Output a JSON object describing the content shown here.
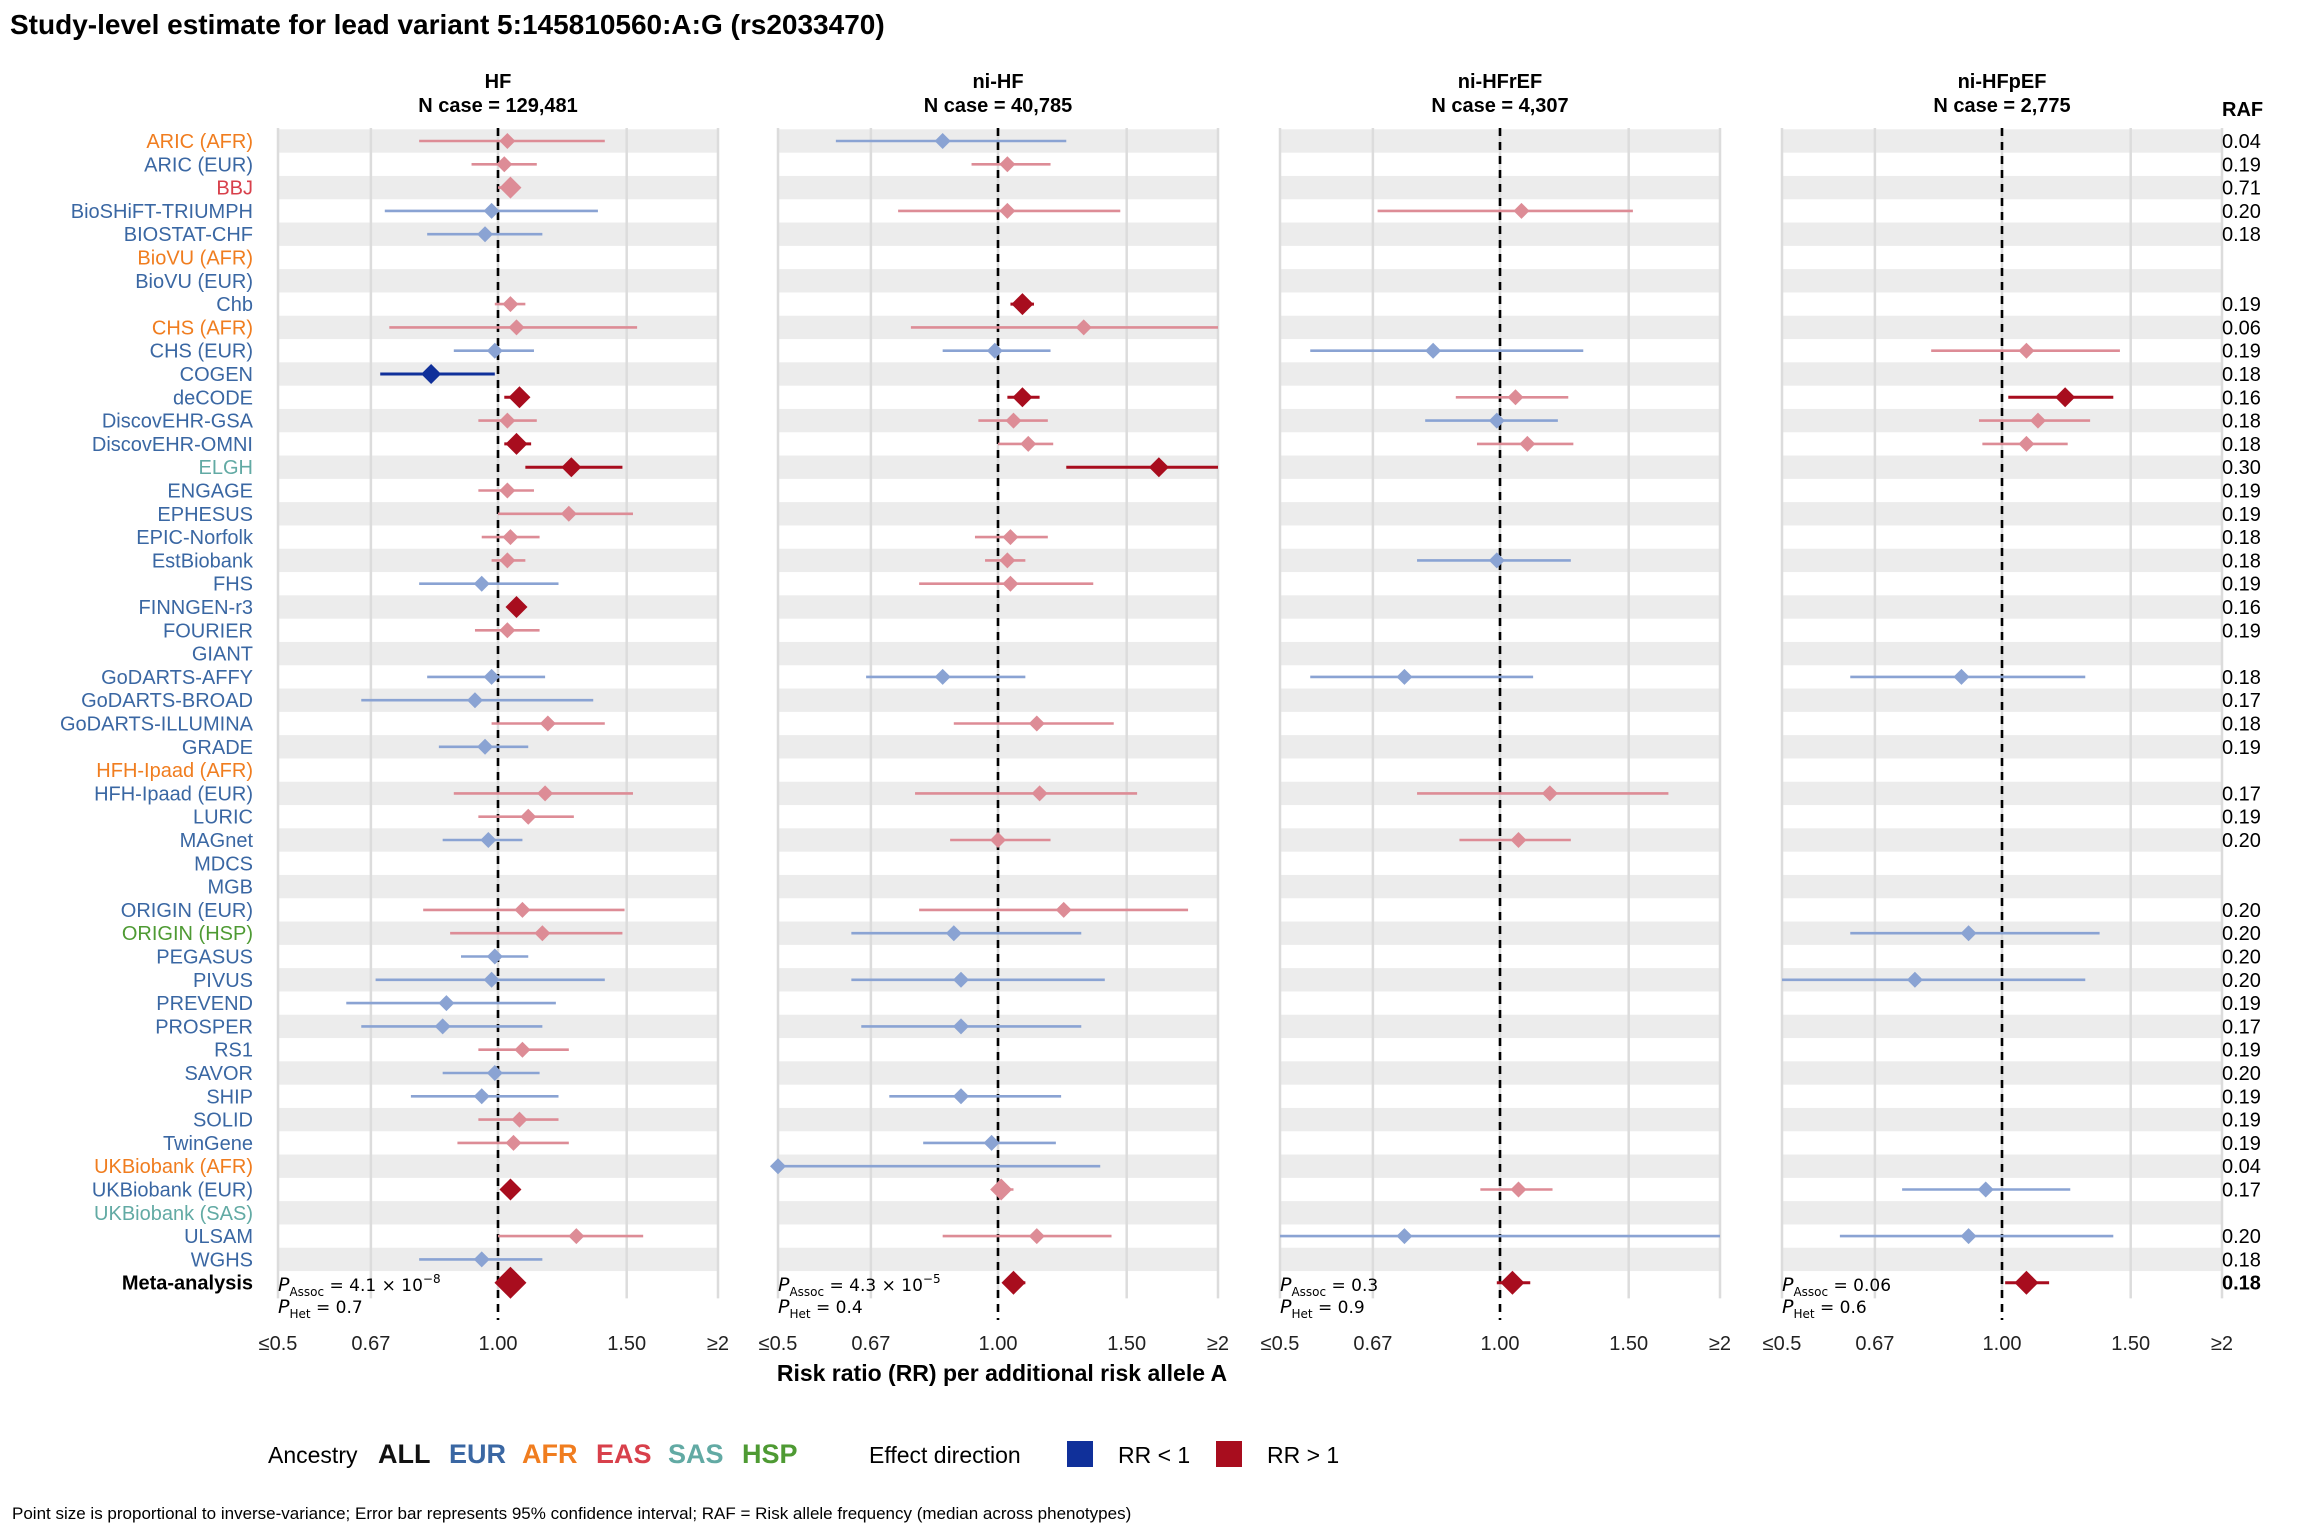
{
  "title": "Study-level estimate for lead variant 5:145810560:A:G (rs2033470)",
  "xlabel": "Risk ratio (RR) per additional risk allele A",
  "raf_header": "RAF",
  "footnote": "Point size is proportional to inverse-variance; Error bar represents 95% confidence interval; RAF = Risk allele frequency (median across phenotypes)",
  "legend": {
    "ancestry_label": "Ancestry",
    "ancestries": [
      {
        "label": "ALL",
        "color": "#111111"
      },
      {
        "label": "EUR",
        "color": "#3a67a3"
      },
      {
        "label": "AFR",
        "color": "#f07d1f"
      },
      {
        "label": "EAS",
        "color": "#d8404b"
      },
      {
        "label": "SAS",
        "color": "#62aaa4"
      },
      {
        "label": "HSP",
        "color": "#4e9a33"
      }
    ],
    "effect_label": "Effect direction",
    "effects": [
      {
        "label": "RR < 1",
        "color": "#10309a"
      },
      {
        "label": "RR > 1",
        "color": "#a80d1e"
      }
    ]
  },
  "chart_data": {
    "type": "forest",
    "x_scale": "log",
    "xlim": [
      0.5,
      2
    ],
    "x_ticks": [
      {
        "value": 0.5,
        "label": "≤0.5"
      },
      {
        "value": 0.67,
        "label": "0.67"
      },
      {
        "value": 1.0,
        "label": "1.00"
      },
      {
        "value": 1.5,
        "label": "1.50"
      },
      {
        "value": 2.0,
        "label": "≥2"
      }
    ],
    "reference_line": 1.0,
    "ancestry_colors": {
      "EUR": "#3a67a3",
      "AFR": "#f07d1f",
      "EAS": "#d8404b",
      "SAS": "#62aaa4",
      "HSP": "#4e9a33",
      "ALL": "#000000"
    },
    "studies": [
      {
        "name": "ARIC (AFR)",
        "ancestry": "AFR",
        "raf": "0.04"
      },
      {
        "name": "ARIC (EUR)",
        "ancestry": "EUR",
        "raf": "0.19"
      },
      {
        "name": "BBJ",
        "ancestry": "EAS",
        "raf": "0.71"
      },
      {
        "name": "BioSHiFT-TRIUMPH",
        "ancestry": "EUR",
        "raf": "0.20"
      },
      {
        "name": "BIOSTAT-CHF",
        "ancestry": "EUR",
        "raf": "0.18"
      },
      {
        "name": "BioVU (AFR)",
        "ancestry": "AFR",
        "raf": ""
      },
      {
        "name": "BioVU (EUR)",
        "ancestry": "EUR",
        "raf": ""
      },
      {
        "name": "Chb",
        "ancestry": "EUR",
        "raf": "0.19"
      },
      {
        "name": "CHS (AFR)",
        "ancestry": "AFR",
        "raf": "0.06"
      },
      {
        "name": "CHS (EUR)",
        "ancestry": "EUR",
        "raf": "0.19"
      },
      {
        "name": "COGEN",
        "ancestry": "EUR",
        "raf": "0.18"
      },
      {
        "name": "deCODE",
        "ancestry": "EUR",
        "raf": "0.16"
      },
      {
        "name": "DiscovEHR-GSA",
        "ancestry": "EUR",
        "raf": "0.18"
      },
      {
        "name": "DiscovEHR-OMNI",
        "ancestry": "EUR",
        "raf": "0.18"
      },
      {
        "name": "ELGH",
        "ancestry": "SAS",
        "raf": "0.30"
      },
      {
        "name": "ENGAGE",
        "ancestry": "EUR",
        "raf": "0.19"
      },
      {
        "name": "EPHESUS",
        "ancestry": "EUR",
        "raf": "0.19"
      },
      {
        "name": "EPIC-Norfolk",
        "ancestry": "EUR",
        "raf": "0.18"
      },
      {
        "name": "EstBiobank",
        "ancestry": "EUR",
        "raf": "0.18"
      },
      {
        "name": "FHS",
        "ancestry": "EUR",
        "raf": "0.19"
      },
      {
        "name": "FINNGEN-r3",
        "ancestry": "EUR",
        "raf": "0.16"
      },
      {
        "name": "FOURIER",
        "ancestry": "EUR",
        "raf": "0.19"
      },
      {
        "name": "GIANT",
        "ancestry": "EUR",
        "raf": ""
      },
      {
        "name": "GoDARTS-AFFY",
        "ancestry": "EUR",
        "raf": "0.18"
      },
      {
        "name": "GoDARTS-BROAD",
        "ancestry": "EUR",
        "raf": "0.17"
      },
      {
        "name": "GoDARTS-ILLUMINA",
        "ancestry": "EUR",
        "raf": "0.18"
      },
      {
        "name": "GRADE",
        "ancestry": "EUR",
        "raf": "0.19"
      },
      {
        "name": "HFH-Ipaad (AFR)",
        "ancestry": "AFR",
        "raf": ""
      },
      {
        "name": "HFH-Ipaad (EUR)",
        "ancestry": "EUR",
        "raf": "0.17"
      },
      {
        "name": "LURIC",
        "ancestry": "EUR",
        "raf": "0.19"
      },
      {
        "name": "MAGnet",
        "ancestry": "EUR",
        "raf": "0.20"
      },
      {
        "name": "MDCS",
        "ancestry": "EUR",
        "raf": ""
      },
      {
        "name": "MGB",
        "ancestry": "EUR",
        "raf": ""
      },
      {
        "name": "ORIGIN (EUR)",
        "ancestry": "EUR",
        "raf": "0.20"
      },
      {
        "name": "ORIGIN (HSP)",
        "ancestry": "HSP",
        "raf": "0.20"
      },
      {
        "name": "PEGASUS",
        "ancestry": "EUR",
        "raf": "0.20"
      },
      {
        "name": "PIVUS",
        "ancestry": "EUR",
        "raf": "0.20"
      },
      {
        "name": "PREVEND",
        "ancestry": "EUR",
        "raf": "0.19"
      },
      {
        "name": "PROSPER",
        "ancestry": "EUR",
        "raf": "0.17"
      },
      {
        "name": "RS1",
        "ancestry": "EUR",
        "raf": "0.19"
      },
      {
        "name": "SAVOR",
        "ancestry": "EUR",
        "raf": "0.20"
      },
      {
        "name": "SHIP",
        "ancestry": "EUR",
        "raf": "0.19"
      },
      {
        "name": "SOLID",
        "ancestry": "EUR",
        "raf": "0.19"
      },
      {
        "name": "TwinGene",
        "ancestry": "EUR",
        "raf": "0.19"
      },
      {
        "name": "UKBiobank (AFR)",
        "ancestry": "AFR",
        "raf": "0.04"
      },
      {
        "name": "UKBiobank (EUR)",
        "ancestry": "EUR",
        "raf": "0.17"
      },
      {
        "name": "UKBiobank (SAS)",
        "ancestry": "SAS",
        "raf": ""
      },
      {
        "name": "ULSAM",
        "ancestry": "EUR",
        "raf": "0.20"
      },
      {
        "name": "WGHS",
        "ancestry": "EUR",
        "raf": "0.18"
      },
      {
        "name": "Meta-analysis",
        "ancestry": "ALL",
        "raf": "0.18"
      }
    ],
    "panels": [
      {
        "name": "HF",
        "n_case": "N case = 129,481",
        "p_assoc": "4.1 × 10",
        "p_assoc_exp": "−8",
        "p_het": "0.7",
        "estimates": [
          {
            "study": "ARIC (AFR)",
            "rr": 1.03,
            "lo": 0.78,
            "hi": 1.4
          },
          {
            "study": "ARIC (EUR)",
            "rr": 1.02,
            "lo": 0.92,
            "hi": 1.13
          },
          {
            "study": "BBJ",
            "rr": 1.04,
            "lo": 1.0,
            "hi": 1.07
          },
          {
            "study": "BioSHiFT-TRIUMPH",
            "rr": 0.98,
            "lo": 0.7,
            "hi": 1.37
          },
          {
            "study": "BIOSTAT-CHF",
            "rr": 0.96,
            "lo": 0.8,
            "hi": 1.15
          },
          {
            "study": "Chb",
            "rr": 1.04,
            "lo": 0.99,
            "hi": 1.09
          },
          {
            "study": "CHS (AFR)",
            "rr": 1.06,
            "lo": 0.71,
            "hi": 1.55
          },
          {
            "study": "CHS (EUR)",
            "rr": 0.99,
            "lo": 0.87,
            "hi": 1.12
          },
          {
            "study": "COGEN",
            "rr": 0.81,
            "lo": 0.69,
            "hi": 0.99
          },
          {
            "study": "deCODE",
            "rr": 1.07,
            "lo": 1.02,
            "hi": 1.1
          },
          {
            "study": "DiscovEHR-GSA",
            "rr": 1.03,
            "lo": 0.94,
            "hi": 1.13
          },
          {
            "study": "DiscovEHR-OMNI",
            "rr": 1.06,
            "lo": 1.02,
            "hi": 1.11
          },
          {
            "study": "ELGH",
            "rr": 1.26,
            "lo": 1.09,
            "hi": 1.48
          },
          {
            "study": "ENGAGE",
            "rr": 1.03,
            "lo": 0.94,
            "hi": 1.12
          },
          {
            "study": "EPHESUS",
            "rr": 1.25,
            "lo": 1.0,
            "hi": 1.53
          },
          {
            "study": "EPIC-Norfolk",
            "rr": 1.04,
            "lo": 0.95,
            "hi": 1.14
          },
          {
            "study": "EstBiobank",
            "rr": 1.03,
            "lo": 0.98,
            "hi": 1.09
          },
          {
            "study": "FHS",
            "rr": 0.95,
            "lo": 0.78,
            "hi": 1.21
          },
          {
            "study": "FINNGEN-r3",
            "rr": 1.06,
            "lo": 1.03,
            "hi": 1.09
          },
          {
            "study": "FOURIER",
            "rr": 1.03,
            "lo": 0.93,
            "hi": 1.14
          },
          {
            "study": "GoDARTS-AFFY",
            "rr": 0.98,
            "lo": 0.8,
            "hi": 1.16
          },
          {
            "study": "GoDARTS-BROAD",
            "rr": 0.93,
            "lo": 0.65,
            "hi": 1.35
          },
          {
            "study": "GoDARTS-ILLUMINA",
            "rr": 1.17,
            "lo": 0.98,
            "hi": 1.4
          },
          {
            "study": "GRADE",
            "rr": 0.96,
            "lo": 0.83,
            "hi": 1.1
          },
          {
            "study": "HFH-Ipaad (EUR)",
            "rr": 1.16,
            "lo": 0.87,
            "hi": 1.53
          },
          {
            "study": "LURIC",
            "rr": 1.1,
            "lo": 0.94,
            "hi": 1.27
          },
          {
            "study": "MAGnet",
            "rr": 0.97,
            "lo": 0.84,
            "hi": 1.08
          },
          {
            "study": "ORIGIN (EUR)",
            "rr": 1.08,
            "lo": 0.79,
            "hi": 1.49
          },
          {
            "study": "ORIGIN (HSP)",
            "rr": 1.15,
            "lo": 0.86,
            "hi": 1.48
          },
          {
            "study": "PEGASUS",
            "rr": 0.99,
            "lo": 0.89,
            "hi": 1.1
          },
          {
            "study": "PIVUS",
            "rr": 0.98,
            "lo": 0.68,
            "hi": 1.4
          },
          {
            "study": "PREVEND",
            "rr": 0.85,
            "lo": 0.62,
            "hi": 1.2
          },
          {
            "study": "PROSPER",
            "rr": 0.84,
            "lo": 0.65,
            "hi": 1.15
          },
          {
            "study": "RS1",
            "rr": 1.08,
            "lo": 0.94,
            "hi": 1.25
          },
          {
            "study": "SAVOR",
            "rr": 0.99,
            "lo": 0.84,
            "hi": 1.14
          },
          {
            "study": "SHIP",
            "rr": 0.95,
            "lo": 0.76,
            "hi": 1.21
          },
          {
            "study": "SOLID",
            "rr": 1.07,
            "lo": 0.94,
            "hi": 1.21
          },
          {
            "study": "TwinGene",
            "rr": 1.05,
            "lo": 0.88,
            "hi": 1.25
          },
          {
            "study": "UKBiobank (EUR)",
            "rr": 1.04,
            "lo": 1.01,
            "hi": 1.07
          },
          {
            "study": "ULSAM",
            "rr": 1.28,
            "lo": 1.0,
            "hi": 1.58
          },
          {
            "study": "WGHS",
            "rr": 0.95,
            "lo": 0.78,
            "hi": 1.15
          },
          {
            "study": "Meta-analysis",
            "rr": 1.04,
            "lo": 1.02,
            "hi": 1.06
          }
        ]
      },
      {
        "name": "ni-HF",
        "n_case": "N case = 40,785",
        "p_assoc": "4.3 × 10",
        "p_assoc_exp": "−5",
        "p_het": "0.4",
        "estimates": [
          {
            "study": "ARIC (AFR)",
            "rr": 0.84,
            "lo": 0.6,
            "hi": 1.24
          },
          {
            "study": "ARIC (EUR)",
            "rr": 1.03,
            "lo": 0.92,
            "hi": 1.18
          },
          {
            "study": "BioSHiFT-TRIUMPH",
            "rr": 1.03,
            "lo": 0.73,
            "hi": 1.47
          },
          {
            "study": "Chb",
            "rr": 1.08,
            "lo": 1.04,
            "hi": 1.12
          },
          {
            "study": "CHS (AFR)",
            "rr": 1.31,
            "lo": 0.76,
            "hi": 2.0
          },
          {
            "study": "CHS (EUR)",
            "rr": 0.99,
            "lo": 0.84,
            "hi": 1.18
          },
          {
            "study": "deCODE",
            "rr": 1.08,
            "lo": 1.03,
            "hi": 1.14
          },
          {
            "study": "DiscovEHR-GSA",
            "rr": 1.05,
            "lo": 0.94,
            "hi": 1.17
          },
          {
            "study": "DiscovEHR-OMNI",
            "rr": 1.1,
            "lo": 1.0,
            "hi": 1.19
          },
          {
            "study": "ELGH",
            "rr": 1.66,
            "lo": 1.24,
            "hi": 2.0
          },
          {
            "study": "EPIC-Norfolk",
            "rr": 1.04,
            "lo": 0.93,
            "hi": 1.17
          },
          {
            "study": "EstBiobank",
            "rr": 1.03,
            "lo": 0.96,
            "hi": 1.09
          },
          {
            "study": "FHS",
            "rr": 1.04,
            "lo": 0.78,
            "hi": 1.35
          },
          {
            "study": "GoDARTS-AFFY",
            "rr": 0.84,
            "lo": 0.66,
            "hi": 1.09
          },
          {
            "study": "GoDARTS-ILLUMINA",
            "rr": 1.13,
            "lo": 0.87,
            "hi": 1.44
          },
          {
            "study": "HFH-Ipaad (EUR)",
            "rr": 1.14,
            "lo": 0.77,
            "hi": 1.55
          },
          {
            "study": "MAGnet",
            "rr": 1.0,
            "lo": 0.86,
            "hi": 1.18
          },
          {
            "study": "ORIGIN (EUR)",
            "rr": 1.23,
            "lo": 0.78,
            "hi": 1.82
          },
          {
            "study": "ORIGIN (HSP)",
            "rr": 0.87,
            "lo": 0.63,
            "hi": 1.3
          },
          {
            "study": "PIVUS",
            "rr": 0.89,
            "lo": 0.63,
            "hi": 1.4
          },
          {
            "study": "PROSPER",
            "rr": 0.89,
            "lo": 0.65,
            "hi": 1.3
          },
          {
            "study": "SHIP",
            "rr": 0.89,
            "lo": 0.71,
            "hi": 1.22
          },
          {
            "study": "TwinGene",
            "rr": 0.98,
            "lo": 0.79,
            "hi": 1.2
          },
          {
            "study": "UKBiobank (AFR)",
            "rr": 0.5,
            "lo": 0.5,
            "hi": 1.38
          },
          {
            "study": "UKBiobank (EUR)",
            "rr": 1.01,
            "lo": 0.98,
            "hi": 1.05
          },
          {
            "study": "ULSAM",
            "rr": 1.13,
            "lo": 0.84,
            "hi": 1.43
          },
          {
            "study": "Meta-analysis",
            "rr": 1.05,
            "lo": 1.02,
            "hi": 1.09
          }
        ]
      },
      {
        "name": "ni-HFrEF",
        "n_case": "N case = 4,307",
        "p_assoc": "0.3",
        "p_assoc_exp": "",
        "p_het": "0.9",
        "estimates": [
          {
            "study": "BioSHiFT-TRIUMPH",
            "rr": 1.07,
            "lo": 0.68,
            "hi": 1.52
          },
          {
            "study": "CHS (EUR)",
            "rr": 0.81,
            "lo": 0.55,
            "hi": 1.3
          },
          {
            "study": "deCODE",
            "rr": 1.05,
            "lo": 0.87,
            "hi": 1.24
          },
          {
            "study": "DiscovEHR-GSA",
            "rr": 0.99,
            "lo": 0.79,
            "hi": 1.2
          },
          {
            "study": "DiscovEHR-OMNI",
            "rr": 1.09,
            "lo": 0.93,
            "hi": 1.26
          },
          {
            "study": "EstBiobank",
            "rr": 0.99,
            "lo": 0.77,
            "hi": 1.25
          },
          {
            "study": "GoDARTS-AFFY",
            "rr": 0.74,
            "lo": 0.55,
            "hi": 1.11
          },
          {
            "study": "HFH-Ipaad (EUR)",
            "rr": 1.17,
            "lo": 0.77,
            "hi": 1.7
          },
          {
            "study": "MAGnet",
            "rr": 1.06,
            "lo": 0.88,
            "hi": 1.25
          },
          {
            "study": "UKBiobank (EUR)",
            "rr": 1.06,
            "lo": 0.94,
            "hi": 1.18
          },
          {
            "study": "ULSAM",
            "rr": 0.74,
            "lo": 0.5,
            "hi": 2.0
          },
          {
            "study": "Meta-analysis",
            "rr": 1.04,
            "lo": 0.99,
            "hi": 1.1
          }
        ]
      },
      {
        "name": "ni-HFpEF",
        "n_case": "N case = 2,775",
        "p_assoc": "0.06",
        "p_assoc_exp": "",
        "p_het": "0.6",
        "estimates": [
          {
            "study": "CHS (EUR)",
            "rr": 1.08,
            "lo": 0.8,
            "hi": 1.45
          },
          {
            "study": "deCODE",
            "rr": 1.22,
            "lo": 1.02,
            "hi": 1.42
          },
          {
            "study": "DiscovEHR-GSA",
            "rr": 1.12,
            "lo": 0.93,
            "hi": 1.32
          },
          {
            "study": "DiscovEHR-OMNI",
            "rr": 1.08,
            "lo": 0.94,
            "hi": 1.23
          },
          {
            "study": "GoDARTS-AFFY",
            "rr": 0.88,
            "lo": 0.62,
            "hi": 1.3
          },
          {
            "study": "ORIGIN (HSP)",
            "rr": 0.9,
            "lo": 0.62,
            "hi": 1.36
          },
          {
            "study": "PIVUS",
            "rr": 0.76,
            "lo": 0.5,
            "hi": 1.3
          },
          {
            "study": "UKBiobank (EUR)",
            "rr": 0.95,
            "lo": 0.73,
            "hi": 1.24
          },
          {
            "study": "ULSAM",
            "rr": 0.9,
            "lo": 0.6,
            "hi": 1.42
          },
          {
            "study": "Meta-analysis",
            "rr": 1.08,
            "lo": 1.01,
            "hi": 1.16
          }
        ]
      }
    ]
  }
}
